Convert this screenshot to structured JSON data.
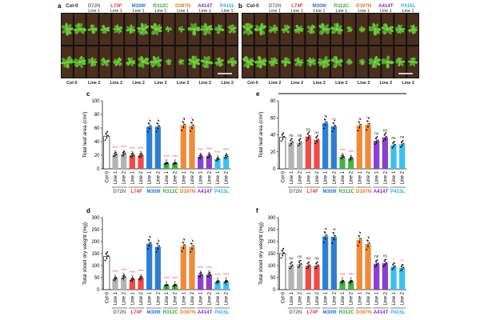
{
  "panels": {
    "a": {
      "letter": "a",
      "top_labels": [
        "Col-0",
        "D72N",
        "L74F",
        "M309I",
        "R312C",
        "D397N",
        "A414T",
        "P415L"
      ],
      "top_sublabels": [
        "",
        "Line 1",
        "Line 1",
        "Line 1",
        "Line 1",
        "Line 1",
        "Line 1",
        "Line 1"
      ],
      "bottom_labels": [
        "Col-0",
        "Line 2",
        "Line 2",
        "Line 2",
        "Line 2",
        "Line 2",
        "Line 2",
        "Line 2"
      ]
    },
    "b": {
      "letter": "b",
      "top_labels": [
        "Col-0",
        "D72N",
        "L74F",
        "M309I",
        "R312C",
        "D397N",
        "A414T",
        "P415L"
      ],
      "top_sublabels": [
        "",
        "Line 1",
        "Line 1",
        "Line 1",
        "Line 1",
        "Line 1",
        "Line 1",
        "Line 1"
      ],
      "bottom_labels": [
        "Col-0",
        "Line 2",
        "Line 2",
        "Line 2",
        "Line 2",
        "Line 2",
        "Line 2",
        "Line 2"
      ]
    }
  },
  "colors": {
    "Col-0": "#ffffff",
    "D72N": "#b3b3b3",
    "L74F": "#ee4b4b",
    "M309I": "#2d7fd6",
    "R312C": "#47b347",
    "D397N": "#ef8a3a",
    "A414T": "#8a3fd1",
    "P415L": "#3cc1ee"
  },
  "label_colors": {
    "Col-0": "#222222",
    "D72N": "#777777",
    "L74F": "#e03c3c",
    "M309I": "#2a70c8",
    "R312C": "#3aa83a",
    "D397N": "#e07a2a",
    "A414T": "#7a2fc8",
    "P415L": "#30b0e0"
  },
  "chart_data": [
    {
      "panel": "c",
      "type": "bar",
      "ylabel": "Total leaf area (cm²)",
      "ylim": [
        0,
        100
      ],
      "yticks": [
        0,
        20,
        40,
        60,
        80,
        100
      ],
      "categories": [
        "Col-0",
        "Line 1",
        "Line 2",
        "Line 1",
        "Line 2",
        "Line 1",
        "Line 2",
        "Line 1",
        "Line 2",
        "Line 1",
        "Line 2",
        "Line 1",
        "Line 2",
        "Line 1",
        "Line 2"
      ],
      "groups": [
        "Col-0",
        "D72N",
        "L74F",
        "M309I",
        "R312C",
        "D397N",
        "A414T",
        "P415L"
      ],
      "values": [
        48,
        21,
        22,
        20,
        20,
        62,
        62,
        8,
        8,
        64,
        63,
        18,
        19,
        14,
        18
      ],
      "sig": [
        "",
        "****",
        "****",
        "****",
        "****",
        "*",
        "*",
        "****",
        "****",
        "**",
        "**",
        "****",
        "****",
        "****",
        "****"
      ]
    },
    {
      "panel": "e",
      "type": "bar",
      "ylabel": "Total leaf area (cm²)",
      "ylim": [
        0,
        80
      ],
      "yticks": [
        0,
        20,
        40,
        60,
        80
      ],
      "categories": [
        "Col-0",
        "Line 1",
        "Line 2",
        "Line 1",
        "Line 2",
        "Line 1",
        "Line 2",
        "Line 1",
        "Line 2",
        "Line 1",
        "Line 2",
        "Line 1",
        "Line 2",
        "Line 1",
        "Line 2"
      ],
      "groups": [
        "Col-0",
        "D72N",
        "L74F",
        "M309I",
        "R312C",
        "D397N",
        "A414T",
        "P415L"
      ],
      "values": [
        37,
        31,
        31,
        38,
        34,
        54,
        50,
        14,
        12,
        51,
        52,
        33,
        37,
        28,
        29
      ],
      "sig": [
        "",
        "ns",
        "ns",
        "ns",
        "ns",
        "**",
        "***",
        "****",
        "****",
        "**",
        "***",
        "ns",
        "ns",
        "ns",
        "ns"
      ]
    },
    {
      "panel": "d",
      "type": "bar",
      "ylabel": "Total shoot dry weight (mg)",
      "ylim": [
        0,
        300
      ],
      "yticks": [
        0,
        50,
        100,
        150,
        200,
        250,
        300
      ],
      "categories": [
        "Col-0",
        "Line 1",
        "Line 2",
        "Line 1",
        "Line 2",
        "Line 1",
        "Line 2",
        "Line 1",
        "Line 2",
        "Line 1",
        "Line 2",
        "Line 1",
        "Line 2",
        "Line 1",
        "Line 2"
      ],
      "groups": [
        "Col-0",
        "D72N",
        "L74F",
        "M309I",
        "R312C",
        "D397N",
        "A414T",
        "P415L"
      ],
      "values": [
        138,
        45,
        52,
        42,
        48,
        192,
        178,
        18,
        18,
        182,
        178,
        62,
        62,
        32,
        33
      ],
      "sig": [
        "",
        "****",
        "****",
        "****",
        "****",
        "*",
        "*",
        "****",
        "****",
        "**",
        "*",
        "****",
        "****",
        "****",
        "****"
      ]
    },
    {
      "panel": "f",
      "type": "bar",
      "ylabel": "Total shoot dry weight (mg)",
      "ylim": [
        0,
        300
      ],
      "yticks": [
        0,
        50,
        100,
        150,
        200,
        250,
        300
      ],
      "categories": [
        "Col-0",
        "Line 1",
        "Line 2",
        "Line 1",
        "Line 2",
        "Line 1",
        "Line 2",
        "Line 1",
        "Line 2",
        "Line 1",
        "Line 2",
        "Line 1",
        "Line 2",
        "Line 1",
        "Line 2"
      ],
      "groups": [
        "Col-0",
        "D72N",
        "L74F",
        "M309I",
        "R312C",
        "D397N",
        "A414T",
        "P415L"
      ],
      "values": [
        150,
        100,
        106,
        100,
        100,
        222,
        220,
        33,
        33,
        208,
        190,
        108,
        110,
        96,
        90
      ],
      "sig": [
        "",
        "ns",
        "ns",
        "ns",
        "ns",
        "**",
        "**",
        "****",
        "****",
        "*",
        "*",
        "ns",
        "ns",
        "*",
        "**"
      ]
    }
  ]
}
